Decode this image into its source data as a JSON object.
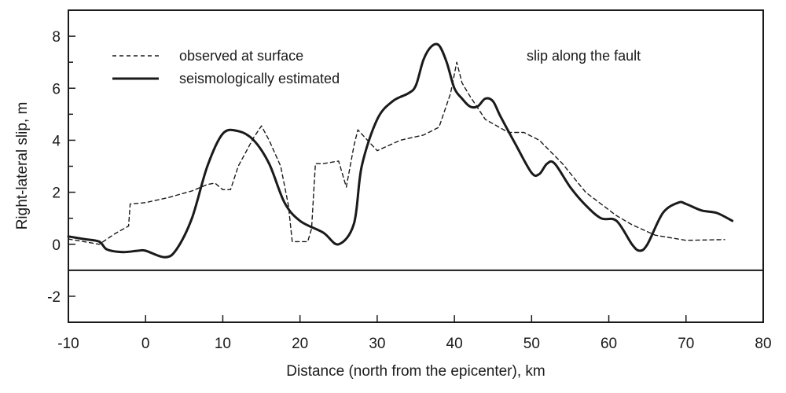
{
  "chart_data": {
    "type": "line",
    "title": "",
    "xlabel": "Distance (north from the epicenter), km",
    "ylabel": "Right-lateral slip, m",
    "xlim": [
      -10,
      80
    ],
    "ylim": [
      -3,
      9
    ],
    "x_ticks": [
      -10,
      0,
      10,
      20,
      30,
      40,
      50,
      60,
      70,
      80
    ],
    "y_ticks": [
      -2,
      0,
      2,
      4,
      6,
      8
    ],
    "x_tick_labels": [
      "-10",
      "0",
      "10",
      "20",
      "30",
      "40",
      "50",
      "60",
      "70",
      "80"
    ],
    "y_tick_labels": [
      "-2",
      "0",
      "2",
      "4",
      "6",
      "8"
    ],
    "reference_line_y": -1,
    "grid": false,
    "legend_position": "top-left",
    "annotation": "slip along the fault",
    "series": [
      {
        "name": "observed at surface",
        "style": "dashed",
        "color": "#1a1a1a",
        "points": [
          [
            -10,
            0.2
          ],
          [
            -8,
            0.1
          ],
          [
            -6,
            0.0
          ],
          [
            -4,
            0.4
          ],
          [
            -2.2,
            0.7
          ],
          [
            -2,
            1.55
          ],
          [
            0,
            1.6
          ],
          [
            3,
            1.8
          ],
          [
            6,
            2.05
          ],
          [
            8,
            2.3
          ],
          [
            9,
            2.35
          ],
          [
            10,
            2.1
          ],
          [
            11,
            2.1
          ],
          [
            12,
            3.0
          ],
          [
            14,
            4.1
          ],
          [
            15,
            4.55
          ],
          [
            16,
            4.0
          ],
          [
            17.5,
            3.0
          ],
          [
            18.5,
            1.5
          ],
          [
            19,
            0.1
          ],
          [
            21,
            0.1
          ],
          [
            21.5,
            0.6
          ],
          [
            22,
            3.1
          ],
          [
            23,
            3.1
          ],
          [
            25,
            3.2
          ],
          [
            26,
            2.2
          ],
          [
            27,
            3.8
          ],
          [
            27.5,
            4.4
          ],
          [
            30,
            3.6
          ],
          [
            33,
            4.0
          ],
          [
            36,
            4.2
          ],
          [
            38,
            4.5
          ],
          [
            39.5,
            5.8
          ],
          [
            40.3,
            7.0
          ],
          [
            41,
            6.2
          ],
          [
            42,
            5.7
          ],
          [
            44,
            4.8
          ],
          [
            47,
            4.3
          ],
          [
            49,
            4.3
          ],
          [
            51,
            4.0
          ],
          [
            54,
            3.1
          ],
          [
            57,
            2.0
          ],
          [
            59,
            1.55
          ],
          [
            61,
            1.1
          ],
          [
            63,
            0.75
          ],
          [
            66,
            0.35
          ],
          [
            70,
            0.15
          ],
          [
            75,
            0.18
          ]
        ]
      },
      {
        "name": "seismologically estimated",
        "style": "solid",
        "color": "#1a1a1a",
        "points": [
          [
            -10,
            0.3
          ],
          [
            -8,
            0.2
          ],
          [
            -6,
            0.1
          ],
          [
            -5,
            -0.2
          ],
          [
            -3,
            -0.3
          ],
          [
            -1,
            -0.25
          ],
          [
            0,
            -0.25
          ],
          [
            2.5,
            -0.5
          ],
          [
            4,
            -0.2
          ],
          [
            6,
            1.0
          ],
          [
            8,
            3.0
          ],
          [
            10,
            4.25
          ],
          [
            12,
            4.35
          ],
          [
            14,
            4.0
          ],
          [
            16,
            3.1
          ],
          [
            18,
            1.6
          ],
          [
            20,
            0.9
          ],
          [
            23,
            0.45
          ],
          [
            25,
            0.0
          ],
          [
            27,
            0.8
          ],
          [
            28,
            3.0
          ],
          [
            30,
            4.8
          ],
          [
            32,
            5.5
          ],
          [
            34,
            5.8
          ],
          [
            35,
            6.1
          ],
          [
            36,
            7.1
          ],
          [
            37,
            7.6
          ],
          [
            38,
            7.65
          ],
          [
            39,
            7.0
          ],
          [
            40,
            6.0
          ],
          [
            41,
            5.6
          ],
          [
            42,
            5.3
          ],
          [
            43,
            5.3
          ],
          [
            44,
            5.6
          ],
          [
            45,
            5.5
          ],
          [
            46,
            4.9
          ],
          [
            48,
            3.8
          ],
          [
            50,
            2.75
          ],
          [
            51,
            2.7
          ],
          [
            52,
            3.1
          ],
          [
            53,
            3.1
          ],
          [
            55,
            2.2
          ],
          [
            57,
            1.5
          ],
          [
            59,
            1.0
          ],
          [
            61,
            0.9
          ],
          [
            63,
            0.0
          ],
          [
            64,
            -0.25
          ],
          [
            65,
            0.0
          ],
          [
            67,
            1.2
          ],
          [
            69,
            1.6
          ],
          [
            70,
            1.55
          ],
          [
            72,
            1.3
          ],
          [
            74,
            1.2
          ],
          [
            76,
            0.9
          ]
        ]
      }
    ]
  }
}
